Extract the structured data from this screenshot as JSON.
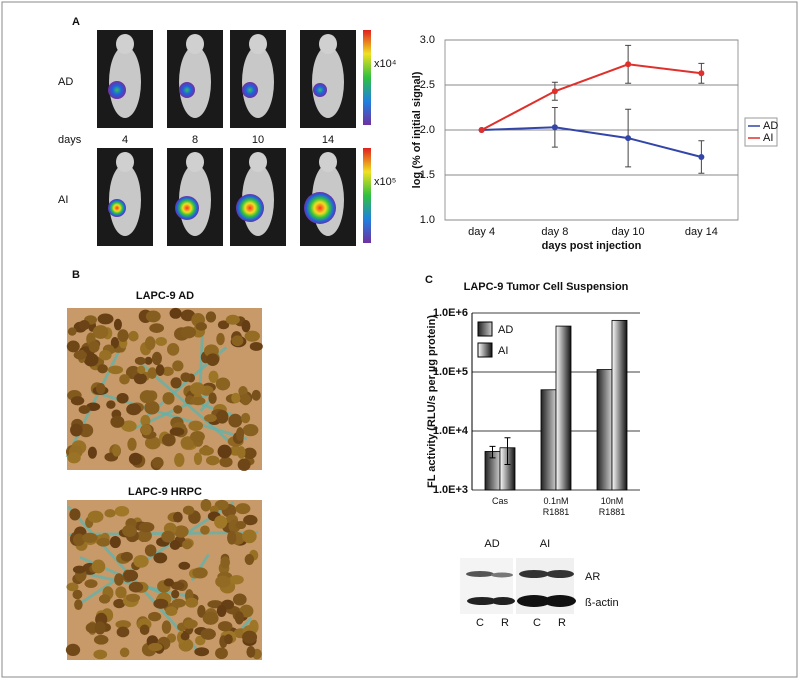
{
  "panels": {
    "a": "A",
    "b": "B",
    "c": "C"
  },
  "imaging": {
    "rows": [
      "AD",
      "AI"
    ],
    "days_label": "days",
    "days": [
      "4",
      "8",
      "10",
      "14"
    ],
    "scale_labels": [
      "x10⁴",
      "x10⁵"
    ]
  },
  "histology": {
    "titles": [
      "LAPC-9 AD",
      "LAPC-9 HRPC"
    ]
  },
  "western": {
    "groups": [
      "AD",
      "AI"
    ],
    "bands": [
      "AR",
      "ß-actin"
    ],
    "lanes": [
      "C",
      "R",
      "C",
      "R"
    ]
  },
  "chart_data": [
    {
      "type": "line",
      "categories": [
        "day 4",
        "day 8",
        "day 10",
        "day 14"
      ],
      "xlabel": "days post injection",
      "ylabel": "log (% of initial signal)",
      "ylim": [
        1,
        3
      ],
      "yticks": [
        {
          "value": 1,
          "label": "1.0"
        },
        1.5,
        {
          "value": 2,
          "label": "2.0"
        },
        2.5,
        {
          "value": 3,
          "label": "3.0"
        }
      ],
      "grid": true,
      "legend": "right",
      "series": [
        {
          "name": "AD",
          "color": "#3346a8",
          "values": [
            2.0,
            2.03,
            1.91,
            1.7
          ],
          "errors": [
            null,
            0.22,
            0.32,
            0.18
          ]
        },
        {
          "name": "AI",
          "color": "#e0302c",
          "values": [
            2.0,
            2.43,
            2.73,
            2.63
          ],
          "errors": [
            null,
            0.1,
            0.21,
            0.11
          ]
        }
      ]
    },
    {
      "type": "bar",
      "title": "LAPC-9 Tumor Cell Suspension",
      "categories": [
        "Cas",
        "0.1nM R1881",
        "10nM R1881"
      ],
      "ylabel": "FL activity (RLU/s per µg protein)",
      "log_scale": true,
      "ylim": [
        1000,
        1000000
      ],
      "yticks": [
        {
          "value": 1000,
          "label": "1.0E+3"
        },
        {
          "value": 10000,
          "label": "1.0E+4"
        },
        {
          "value": 100000,
          "label": "1.0E+5"
        },
        {
          "value": 1000000,
          "label": "1.0E+6"
        }
      ],
      "grid": true,
      "legend": "top-left",
      "series": [
        {
          "name": "AD",
          "color": "#222222",
          "values": [
            4500,
            50000,
            110000
          ],
          "errors": [
            1000,
            null,
            null
          ]
        },
        {
          "name": "AI",
          "color": "#f2f2f2",
          "values": [
            5200,
            600000,
            750000
          ],
          "errors": [
            2500,
            null,
            null
          ]
        }
      ]
    }
  ]
}
